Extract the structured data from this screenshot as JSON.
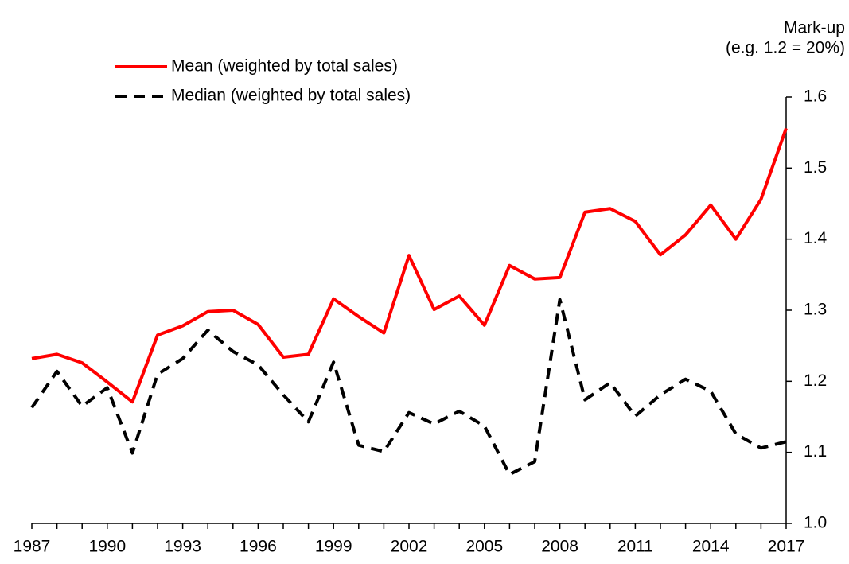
{
  "chart_data": {
    "type": "line",
    "ylabel": [
      "Mark-up",
      "(e.g. 1.2 = 20%)"
    ],
    "x": [
      1987,
      1988,
      1989,
      1990,
      1991,
      1992,
      1993,
      1994,
      1995,
      1996,
      1997,
      1998,
      1999,
      2000,
      2001,
      2002,
      2003,
      2004,
      2005,
      2006,
      2007,
      2008,
      2009,
      2010,
      2011,
      2012,
      2013,
      2014,
      2015,
      2016,
      2017
    ],
    "xlim": [
      1987,
      2017
    ],
    "xticks": [
      1987,
      1990,
      1993,
      1996,
      1999,
      2002,
      2005,
      2008,
      2011,
      2014,
      2017
    ],
    "ylim": [
      1.0,
      1.6
    ],
    "yticks": [
      {
        "value": 1.0,
        "label": "1.0"
      },
      1.1,
      1.2,
      1.3,
      1.4,
      1.5,
      1.6
    ],
    "y_axis_side": "right",
    "legend": "upper left",
    "series": [
      {
        "name": "Mean (weighted by total sales)",
        "color": "#ff0000",
        "style": "solid",
        "values": [
          1.232,
          1.238,
          1.226,
          1.199,
          1.171,
          1.265,
          1.278,
          1.298,
          1.3,
          1.28,
          1.234,
          1.238,
          1.316,
          1.291,
          1.268,
          1.377,
          1.301,
          1.32,
          1.279,
          1.363,
          1.344,
          1.346,
          1.438,
          1.443,
          1.425,
          1.378,
          1.406,
          1.448,
          1.4,
          1.456,
          1.556
        ]
      },
      {
        "name": "Median (weighted by total sales)",
        "color": "#000000",
        "style": "dashed",
        "values": [
          1.163,
          1.214,
          1.165,
          1.191,
          1.099,
          1.21,
          1.232,
          1.272,
          1.242,
          1.223,
          1.181,
          1.143,
          1.227,
          1.11,
          1.101,
          1.156,
          1.14,
          1.158,
          1.137,
          1.069,
          1.087,
          1.315,
          1.174,
          1.198,
          1.151,
          1.181,
          1.203,
          1.186,
          1.126,
          1.106,
          1.115
        ]
      }
    ]
  }
}
